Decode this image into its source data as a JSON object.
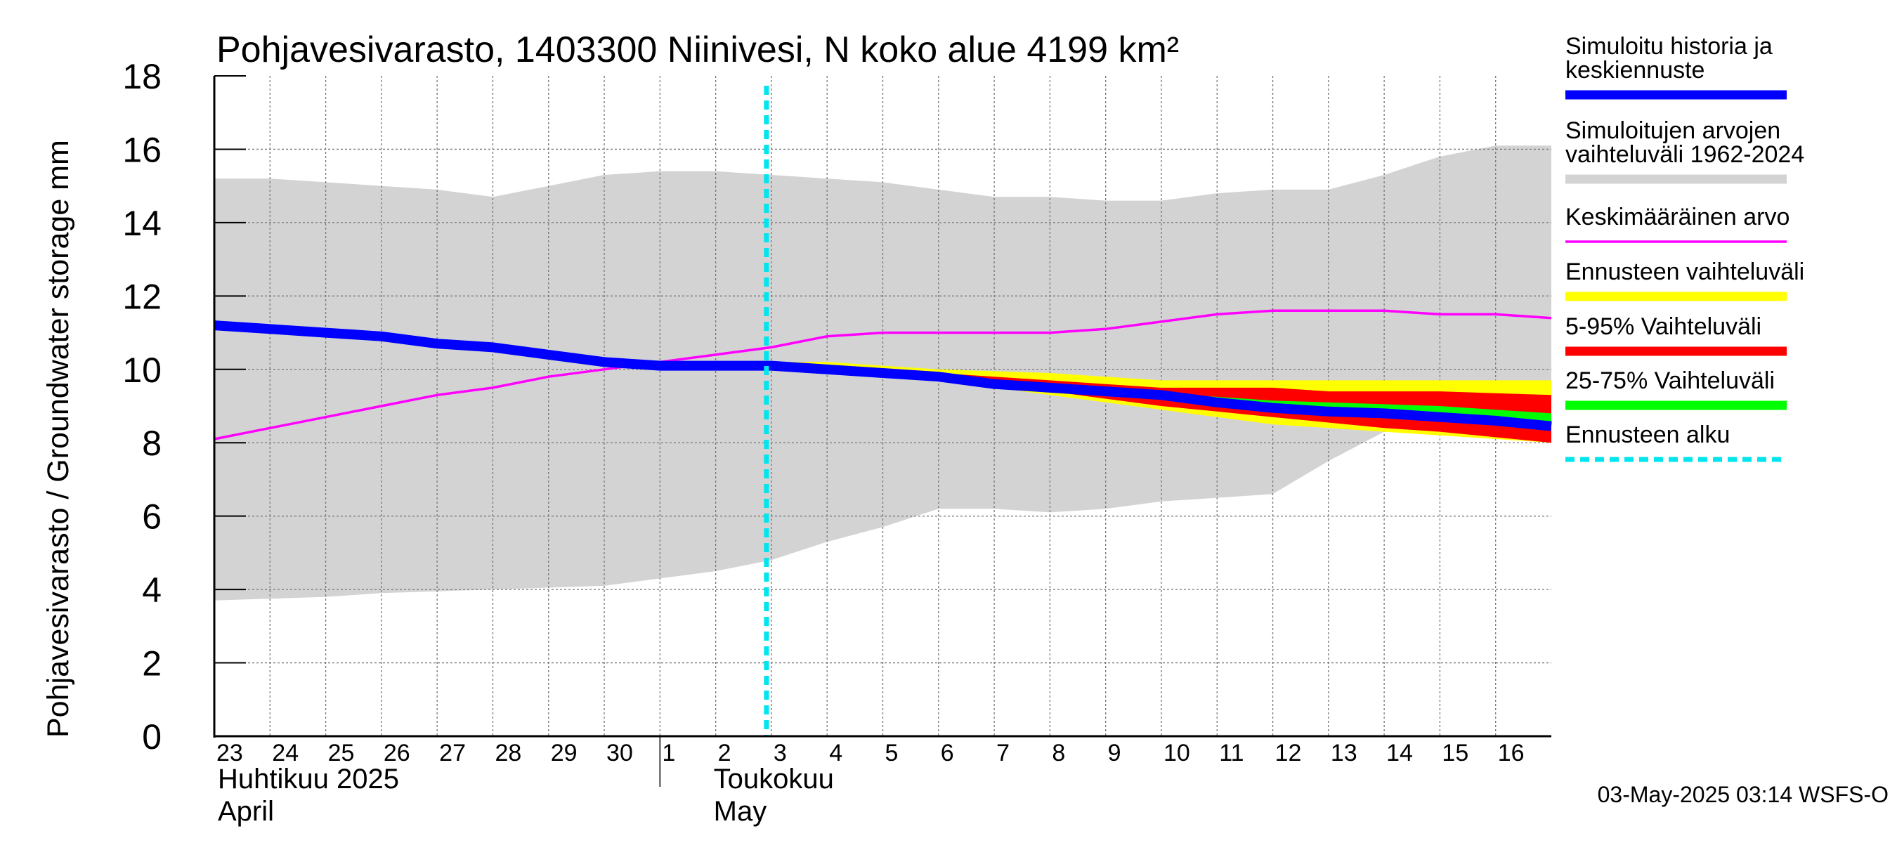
{
  "chart_data": {
    "type": "area",
    "title": "Pohjavesivarasto, 1403300 Niinivesi, N koko alue 4199 km²",
    "ylabel": "Pohjavesivarasto / Groundwater storage   mm",
    "ylim": [
      0,
      18
    ],
    "yticks": [
      "0",
      "2",
      "4",
      "6",
      "8",
      "10",
      "12",
      "14",
      "16",
      "18"
    ],
    "grid": true,
    "legend_position": "right",
    "xlim": [
      "2025-04-23",
      "2025-05-16"
    ],
    "x_tick_labels": [
      "23",
      "24",
      "25",
      "26",
      "27",
      "28",
      "29",
      "30",
      "1",
      "2",
      "3",
      "4",
      "5",
      "6",
      "7",
      "8",
      "9",
      "10",
      "11",
      "12",
      "13",
      "14",
      "15",
      "16"
    ],
    "month_labels": [
      {
        "fi": "Huhtikuu  2025",
        "en": "April"
      },
      {
        "fi": "Toukokuu",
        "en": "May"
      }
    ],
    "x": [
      "2025-04-23",
      "2025-04-24",
      "2025-04-25",
      "2025-04-26",
      "2025-04-27",
      "2025-04-28",
      "2025-04-29",
      "2025-04-30",
      "2025-05-01",
      "2025-05-02",
      "2025-05-03",
      "2025-05-04",
      "2025-05-05",
      "2025-05-06",
      "2025-05-07",
      "2025-05-08",
      "2025-05-09",
      "2025-05-10",
      "2025-05-11",
      "2025-05-12",
      "2025-05-13",
      "2025-05-14",
      "2025-05-15",
      "2025-05-16",
      "2025-05-17"
    ],
    "history_range": {
      "name": "Simuloitujen arvojen vaihteluväli 1962-2024",
      "color": "#d3d3d3",
      "upper": [
        15.2,
        15.2,
        15.1,
        15.0,
        14.9,
        14.7,
        15.0,
        15.3,
        15.4,
        15.4,
        15.3,
        15.2,
        15.1,
        14.9,
        14.7,
        14.7,
        14.6,
        14.6,
        14.8,
        14.9,
        14.9,
        15.3,
        15.8,
        16.1,
        16.1
      ],
      "lower": [
        3.7,
        3.75,
        3.8,
        3.9,
        3.95,
        4.0,
        4.05,
        4.1,
        4.3,
        4.5,
        4.8,
        5.3,
        5.7,
        6.2,
        6.2,
        6.1,
        6.2,
        6.4,
        6.5,
        6.6,
        7.5,
        8.3,
        8.3,
        8.2,
        8.0
      ]
    },
    "series": [
      {
        "name": "Simuloitu historia ja keskiennuste",
        "color": "#0000ff",
        "values": [
          11.2,
          11.1,
          11.0,
          10.9,
          10.7,
          10.6,
          10.4,
          10.2,
          10.1,
          10.1,
          10.1,
          10.0,
          9.9,
          9.8,
          9.6,
          9.5,
          9.4,
          9.3,
          9.1,
          8.95,
          8.85,
          8.8,
          8.7,
          8.6,
          8.45
        ]
      },
      {
        "name": "Keskimääräinen arvo",
        "color": "#ff00ff",
        "values": [
          8.1,
          8.4,
          8.7,
          9.0,
          9.3,
          9.5,
          9.8,
          10.0,
          10.2,
          10.4,
          10.6,
          10.9,
          11.0,
          11.0,
          11.0,
          11.0,
          11.1,
          11.3,
          11.5,
          11.6,
          11.6,
          11.6,
          11.5,
          11.5,
          11.4
        ]
      }
    ],
    "forecast_start": "2025-05-03",
    "forecast_x": [
      "2025-05-03",
      "2025-05-04",
      "2025-05-05",
      "2025-05-06",
      "2025-05-07",
      "2025-05-08",
      "2025-05-09",
      "2025-05-10",
      "2025-05-11",
      "2025-05-12",
      "2025-05-13",
      "2025-05-14",
      "2025-05-15",
      "2025-05-16",
      "2025-05-17"
    ],
    "forecast_bands": [
      {
        "name": "Ennusteen vaihteluväli",
        "color": "#ffff00",
        "upper": [
          10.2,
          10.2,
          10.1,
          10.0,
          9.95,
          9.9,
          9.8,
          9.7,
          9.7,
          9.7,
          9.7,
          9.7,
          9.7,
          9.7,
          9.7
        ],
        "lower": [
          10.1,
          10.0,
          9.85,
          9.7,
          9.5,
          9.3,
          9.1,
          8.9,
          8.7,
          8.5,
          8.4,
          8.3,
          8.2,
          8.1,
          8.0
        ]
      },
      {
        "name": "5-95% Vaihteluväli",
        "color": "#ff0000",
        "upper": [
          10.15,
          10.1,
          10.0,
          9.9,
          9.8,
          9.7,
          9.6,
          9.5,
          9.5,
          9.5,
          9.4,
          9.4,
          9.4,
          9.35,
          9.3
        ],
        "lower": [
          10.1,
          10.0,
          9.85,
          9.7,
          9.55,
          9.4,
          9.2,
          9.0,
          8.85,
          8.7,
          8.55,
          8.4,
          8.3,
          8.15,
          8.0
        ]
      },
      {
        "name": "25-75% Vaihteluväli",
        "color": "#00ff00",
        "upper": [
          10.12,
          10.05,
          9.95,
          9.85,
          9.7,
          9.55,
          9.45,
          9.35,
          9.25,
          9.15,
          9.1,
          9.05,
          9.0,
          8.9,
          8.8
        ],
        "lower": [
          10.1,
          10.0,
          9.88,
          9.75,
          9.6,
          9.45,
          9.3,
          9.2,
          9.05,
          8.95,
          8.85,
          8.75,
          8.65,
          8.55,
          8.45
        ]
      }
    ],
    "legend": [
      {
        "label_lines": [
          "Simuloitu historia ja",
          "keskiennuste"
        ],
        "color": "#0000ff",
        "style": "thick"
      },
      {
        "label_lines": [
          "Simuloitujen arvojen",
          "vaihteluväli 1962-2024"
        ],
        "color": "#d3d3d3",
        "style": "thick"
      },
      {
        "label_lines": [
          "Keskimääräinen arvo"
        ],
        "color": "#ff00ff",
        "style": "thin"
      },
      {
        "label_lines": [
          "Ennusteen vaihteluväli"
        ],
        "color": "#ffff00",
        "style": "thick"
      },
      {
        "label_lines": [
          "5-95% Vaihteluväli"
        ],
        "color": "#ff0000",
        "style": "thick"
      },
      {
        "label_lines": [
          "25-75% Vaihteluväli"
        ],
        "color": "#00ff00",
        "style": "thick"
      },
      {
        "label_lines": [
          "Ennusteen alku"
        ],
        "color": "#00e5ee",
        "style": "dashed"
      }
    ],
    "footer": "03-May-2025 03:14 WSFS-O"
  }
}
